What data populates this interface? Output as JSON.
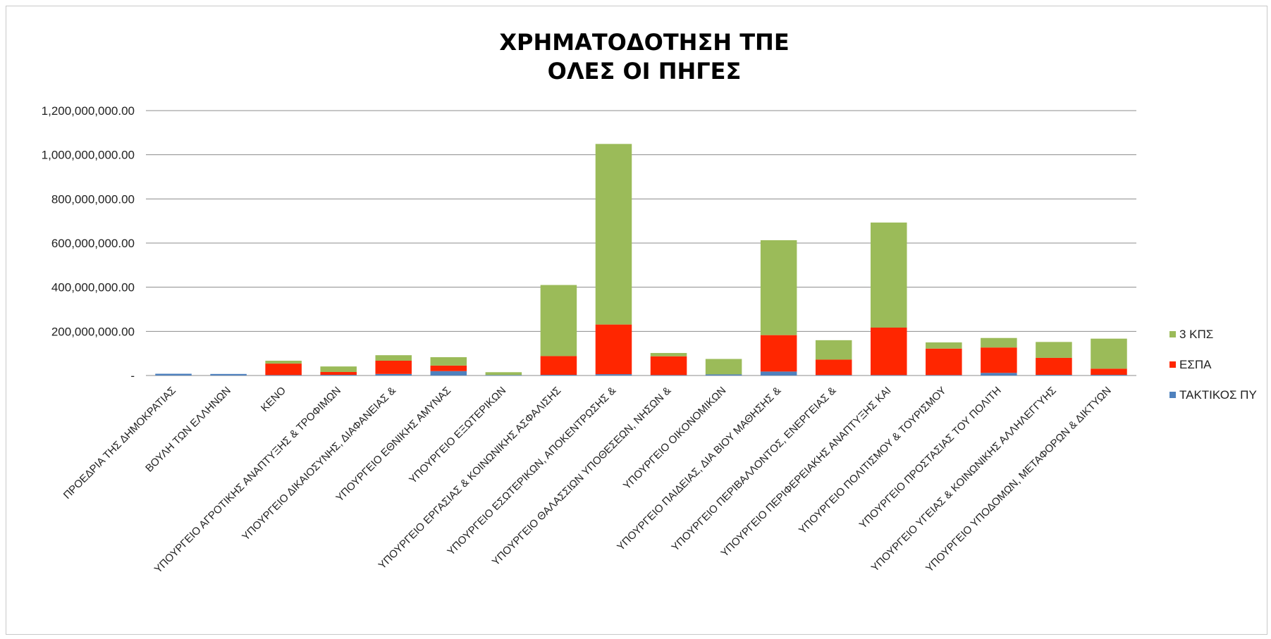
{
  "chart_data": {
    "type": "bar",
    "stacked": true,
    "title": [
      "ΧΡΗΜΑΤΟΔΟΤΗΣΗ ΤΠΕ",
      "ΟΛΕΣ ΟΙ ΠΗΓΕΣ"
    ],
    "ylim": [
      0,
      1200000000
    ],
    "ytick_values": [
      0,
      200000000,
      400000000,
      600000000,
      800000000,
      1000000000,
      1200000000
    ],
    "ytick_labels": [
      "-",
      "200,000,000.00",
      "400,000,000.00",
      "600,000,000.00",
      "800,000,000.00",
      "1,000,000,000.00",
      "1,200,000,000.00"
    ],
    "grid": true,
    "legend_position": "right",
    "categories": [
      "ΠΡΟΕΔΡΙΑ ΤΗΣ ΔΗΜΟΚΡΑΤΙΑΣ",
      "ΒΟΥΛΗ ΤΩΝ ΕΛΛΗΝΩΝ",
      "ΚΕΝΟ",
      "ΥΠΟΥΡΓΕΙΟ ΑΓΡΟΤΙΚΗΣ ΑΝΑΠΤΥΞΗΣ & ΤΡΟΦΙΜΩΝ",
      "ΥΠΟΥΡΓΕΙΟ ΔΙΚΑΙΟΣΥΝΗΣ, ΔΙΑΦΑΝΕΙΑΣ &",
      "ΥΠΟΥΡΓΕΙΟ ΕΘΝΙΚΗΣ ΑΜΥΝΑΣ",
      "ΥΠΟΥΡΓΕΙΟ ΕΞΩΤΕΡΙΚΩΝ",
      "ΥΠΟΥΡΓΕΙΟ ΕΡΓΑΣΙΑΣ & ΚΟΙΝΩΝΙΚΗΣ ΑΣΦΑΛΙΣΗΣ",
      "ΥΠΟΥΡΓΕΙΟ ΕΣΩΤΕΡΙΚΩΝ, ΑΠΟΚΕΝΤΡΩΣΗΣ &",
      "ΥΠΟΥΡΓΕΙΟ ΘΑΛΑΣΣΙΩΝ ΥΠΟΘΕΣΕΩΝ, ΝΗΣΩΝ &",
      "ΥΠΟΥΡΓΕΙΟ ΟΙΚΟΝΟΜΙΚΩΝ",
      "ΥΠΟΥΡΓΕΙΟ ΠΑΙΔΕΙΑΣ, ΔΙΑ ΒΙΟΥ ΜΑΘΗΣΗΣ &",
      "ΥΠΟΥΡΓΕΙΟ ΠΕΡΙΒΑΛΛΟΝΤΟΣ, ΕΝΕΡΓΕΙΑΣ &",
      "ΥΠΟΥΡΓΕΙΟ ΠΕΡΙΦΕΡΕΙΑΚΗΣ ΑΝΑΠΤΥΞΗΣ ΚΑΙ",
      "ΥΠΟΥΡΓΕΙΟ ΠΟΛΙΤΙΣΜΟΥ & ΤΟΥΡΙΣΜΟΥ",
      "ΥΠΟΥΡΓΕΙΟ ΠΡΟΣΤΑΣΙΑΣ ΤΟΥ ΠΟΛΙΤΗ",
      "ΥΠΟΥΡΓΕΙΟ ΥΓΕΙΑΣ & ΚΟΙΝΩΝΙΚΗΣ ΑΛΛΗΛΕΓΓΥΗΣ",
      "ΥΠΟΥΡΓΕΙΟ ΥΠΟΔΟΜΩΝ, ΜΕΤΑΦΟΡΩΝ & ΔΙΚΤΥΩΝ"
    ],
    "series": [
      {
        "name": "ΤΑΚΤΙΚΟΣ ΠΥ",
        "color": "#4f81bd",
        "values": [
          8000000,
          7000000,
          2000000,
          3000000,
          7000000,
          20000000,
          2000000,
          3000000,
          6000000,
          2000000,
          5000000,
          18000000,
          2000000,
          2000000,
          2000000,
          12000000,
          3000000,
          3000000
        ]
      },
      {
        "name": "ΕΣΠΑ",
        "color": "#ff2600",
        "values": [
          0,
          0,
          52000000,
          13000000,
          60000000,
          25000000,
          0,
          85000000,
          225000000,
          85000000,
          0,
          165000000,
          70000000,
          215000000,
          120000000,
          115000000,
          77000000,
          28000000
        ]
      },
      {
        "name": "3 ΚΠΣ",
        "color": "#9bbb59",
        "values": [
          0,
          0,
          13000000,
          25000000,
          25000000,
          38000000,
          13000000,
          322000000,
          818000000,
          15000000,
          70000000,
          430000000,
          88000000,
          476000000,
          28000000,
          43000000,
          72000000,
          136000000
        ]
      }
    ],
    "legend_order": [
      "3 ΚΠΣ",
      "ΕΣΠΑ",
      "ΤΑΚΤΙΚΟΣ ΠΥ"
    ]
  }
}
